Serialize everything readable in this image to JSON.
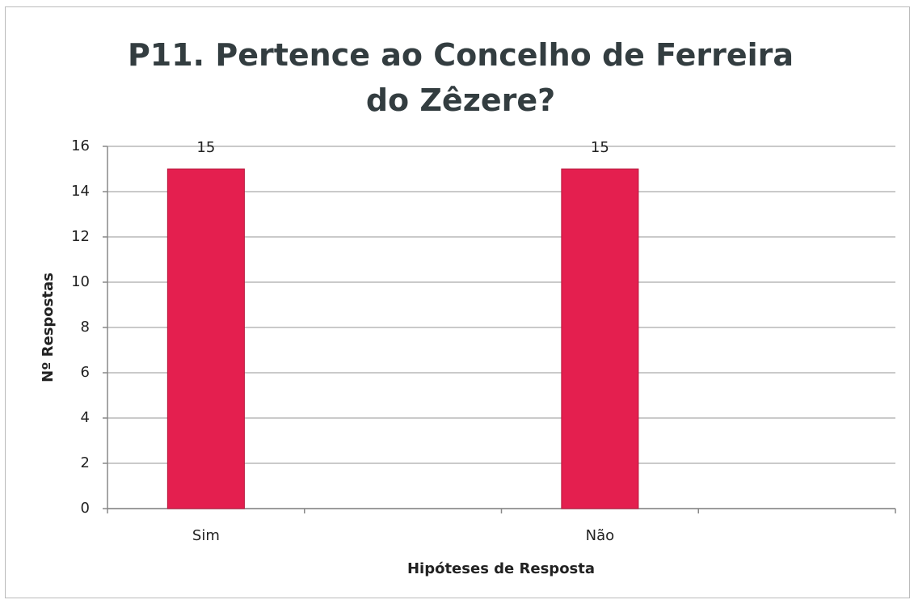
{
  "chart_data": {
    "type": "bar",
    "title": "P11. Pertence ao Concelho de Ferreira do Zêzere?",
    "xlabel": "Hipóteses de Resposta",
    "ylabel": "Nº Respostas",
    "categories": [
      "Sim",
      null,
      "Não",
      null
    ],
    "values": [
      15,
      null,
      15,
      null
    ],
    "color": "#e41f4f",
    "ylim": [
      0,
      16
    ],
    "yticks": [
      0,
      2,
      4,
      6,
      8,
      10,
      12,
      14,
      16
    ],
    "grid": true
  }
}
